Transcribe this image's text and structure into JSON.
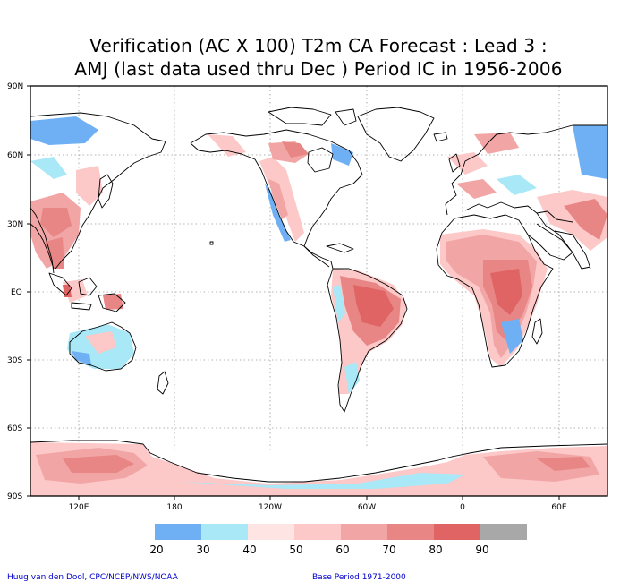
{
  "title": {
    "line1": "Verification (AC X 100) T2m CA Forecast : Lead 3 :",
    "line2": "AMJ (last data used thru Dec ) Period IC in 1956-2006"
  },
  "lat_labels": [
    "90N",
    "60N",
    "30N",
    "EQ",
    "30S",
    "60S",
    "90S"
  ],
  "lon_labels": [
    "120E",
    "180",
    "120W",
    "60W",
    "0",
    "60E"
  ],
  "legend": {
    "colors": [
      "#6fb0f5",
      "#a9e8f7",
      "#ffe4e4",
      "#fcc8c8",
      "#f2a5a5",
      "#e88585",
      "#e06464",
      "#a8a8a8"
    ],
    "labels": [
      "20",
      "30",
      "40",
      "50",
      "60",
      "70",
      "80",
      "90"
    ]
  },
  "credits": {
    "author": "Huug van den Dool, CPC/NCEP/NWS/NOAA",
    "base_period": "Base Period 1971-2000"
  }
}
